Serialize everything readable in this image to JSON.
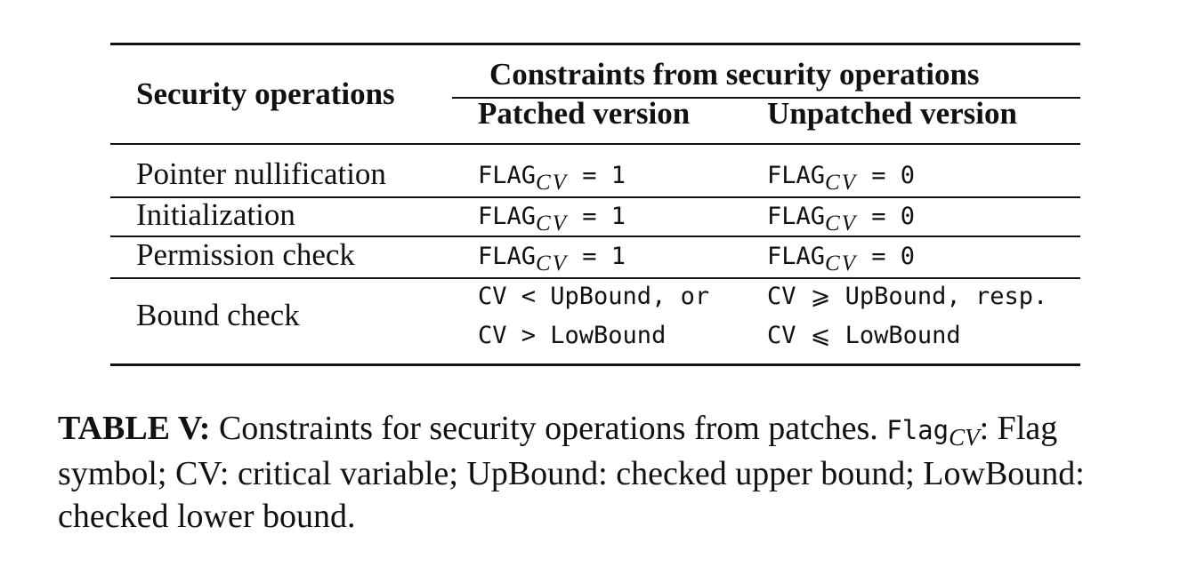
{
  "table": {
    "header": {
      "row_label": "Security operations",
      "group_label": "Constraints from security operations",
      "col_patched": "Patched version",
      "col_unpatched": "Unpatched version"
    },
    "rows": [
      {
        "operation": "Pointer nullification",
        "patched": {
          "prefix": "FLAG",
          "sub": "CV",
          "rest": " = 1"
        },
        "unpatched": {
          "prefix": "FLAG",
          "sub": "CV",
          "rest": " = 0"
        }
      },
      {
        "operation": "Initialization",
        "patched": {
          "prefix": "FLAG",
          "sub": "CV",
          "rest": " = 1"
        },
        "unpatched": {
          "prefix": "FLAG",
          "sub": "CV",
          "rest": " = 0"
        }
      },
      {
        "operation": "Permission check",
        "patched": {
          "prefix": "FLAG",
          "sub": "CV",
          "rest": " = 1"
        },
        "unpatched": {
          "prefix": "FLAG",
          "sub": "CV",
          "rest": " = 0"
        }
      },
      {
        "operation": "Bound check",
        "patched_lines": [
          "CV < UpBound, or",
          "CV > LowBound"
        ],
        "unpatched_lines": [
          "CV ⩾ UpBound, resp.",
          "CV ⩽ LowBound"
        ]
      }
    ]
  },
  "caption": {
    "label": "TABLE V:",
    "text1": " Constraints for security operations from patches. ",
    "flag_mono": "Flag",
    "flag_sub": "CV",
    "text2": ": Flag symbol; CV: critical variable; UpBound: checked upper bound; LowBound: checked lower bound."
  }
}
